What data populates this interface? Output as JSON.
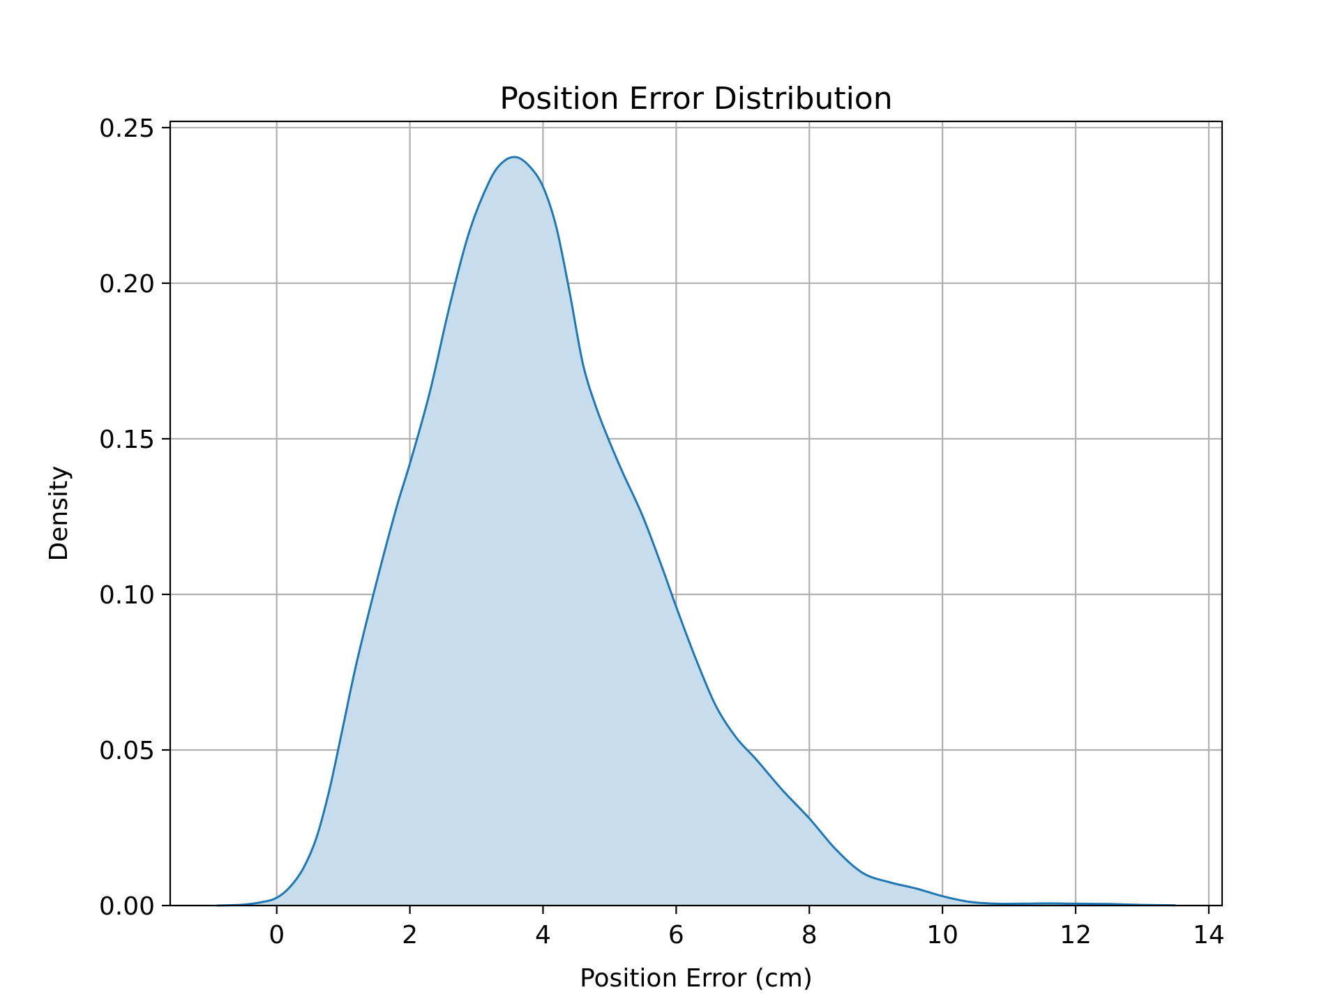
{
  "chart_data": {
    "type": "area",
    "title": "Position Error Distribution",
    "xlabel": "Position Error (cm)",
    "ylabel": "Density",
    "xlim": [
      -1.6,
      14.2
    ],
    "ylim": [
      0,
      0.252
    ],
    "xticks": [
      0,
      2,
      4,
      6,
      8,
      10,
      12,
      14
    ],
    "xtick_labels": [
      "0",
      "2",
      "4",
      "6",
      "8",
      "10",
      "12",
      "14"
    ],
    "yticks": [
      0,
      0.05,
      0.1,
      0.15,
      0.2,
      0.25
    ],
    "ytick_labels": [
      "0.00",
      "0.05",
      "0.10",
      "0.15",
      "0.20",
      "0.25"
    ],
    "grid": true,
    "series": [
      {
        "x": [
          -0.9,
          -0.5,
          -0.2,
          0.0,
          0.2,
          0.4,
          0.6,
          0.8,
          1.0,
          1.2,
          1.5,
          1.8,
          2.0,
          2.3,
          2.6,
          2.9,
          3.2,
          3.4,
          3.6,
          3.8,
          4.0,
          4.2,
          4.4,
          4.6,
          4.8,
          5.0,
          5.2,
          5.5,
          5.8,
          6.0,
          6.3,
          6.6,
          6.9,
          7.2,
          7.6,
          8.0,
          8.4,
          8.8,
          9.2,
          9.6,
          10.0,
          10.4,
          10.8,
          11.2,
          11.6,
          12.0,
          12.5,
          13.0,
          13.5
        ],
        "y": [
          0.0,
          0.0003,
          0.0012,
          0.0025,
          0.006,
          0.012,
          0.022,
          0.038,
          0.058,
          0.078,
          0.104,
          0.128,
          0.142,
          0.165,
          0.193,
          0.217,
          0.233,
          0.239,
          0.2405,
          0.2375,
          0.231,
          0.218,
          0.197,
          0.174,
          0.16,
          0.149,
          0.139,
          0.125,
          0.108,
          0.096,
          0.079,
          0.064,
          0.054,
          0.047,
          0.037,
          0.028,
          0.018,
          0.0105,
          0.0075,
          0.0055,
          0.003,
          0.0012,
          0.0006,
          0.0006,
          0.0007,
          0.0006,
          0.0005,
          0.0002,
          0.0001
        ],
        "color": "#1f77b4",
        "fill_color": "#c7dcec"
      }
    ]
  }
}
